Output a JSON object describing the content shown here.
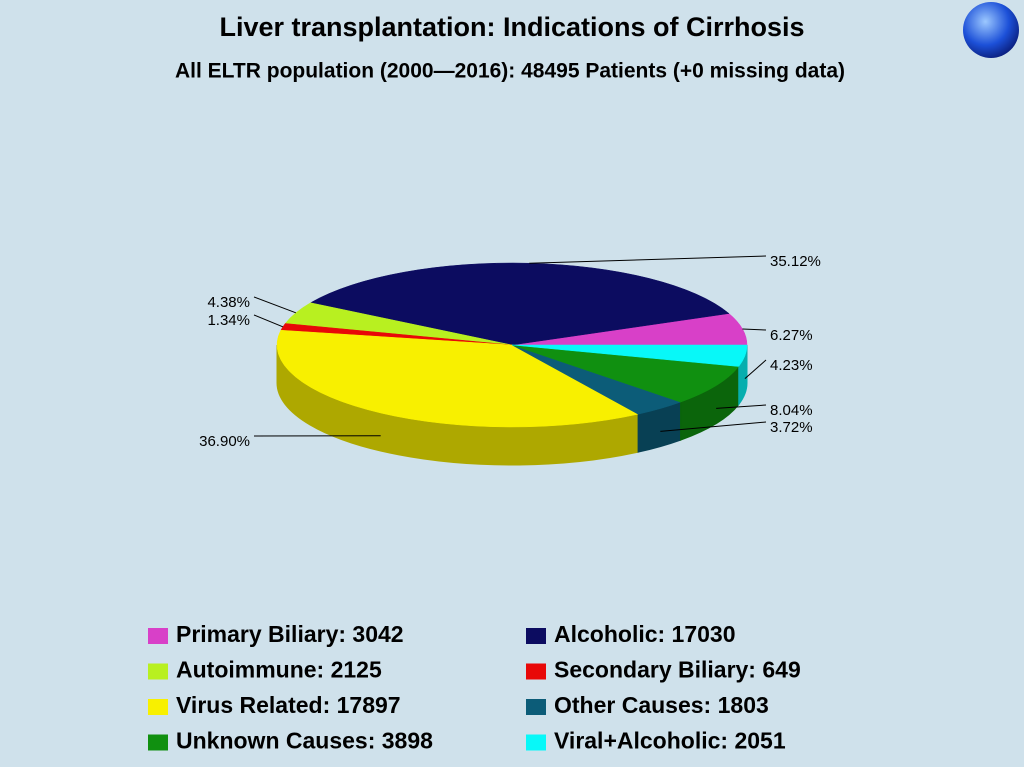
{
  "chart_data": {
    "type": "pie3d",
    "title": "Liver transplantation: Indications of Cirrhosis",
    "subtitle": "All ELTR population (2000—2016): 48495 Patients (+0 missing data)",
    "categories": [
      "Primary Biliary",
      "Alcoholic",
      "Autoimmune",
      "Secondary Biliary",
      "Virus Related",
      "Other Causes",
      "Unknown Causes",
      "Viral+Alcoholic"
    ],
    "legend_labels": [
      "Primary Biliary: 3042",
      "Alcoholic: 17030",
      "Autoimmune: 2125",
      "Secondary Biliary: 649",
      "Virus Related: 17897",
      "Other Causes: 1803",
      "Unknown Causes: 3898",
      "Viral+Alcoholic: 2051"
    ],
    "values": [
      3042,
      17030,
      2125,
      649,
      17897,
      1803,
      3898,
      2051
    ],
    "value_labels": [
      "6.27%",
      "35.12%",
      "4.38%",
      "1.34%",
      "36.90%",
      "3.72%",
      "8.04%",
      "4.23%"
    ],
    "colors": [
      "#d840c8",
      "#0c0c60",
      "#b8f020",
      "#e80808",
      "#f8f000",
      "#0c5c78",
      "#109010",
      "#08f8f8"
    ]
  }
}
